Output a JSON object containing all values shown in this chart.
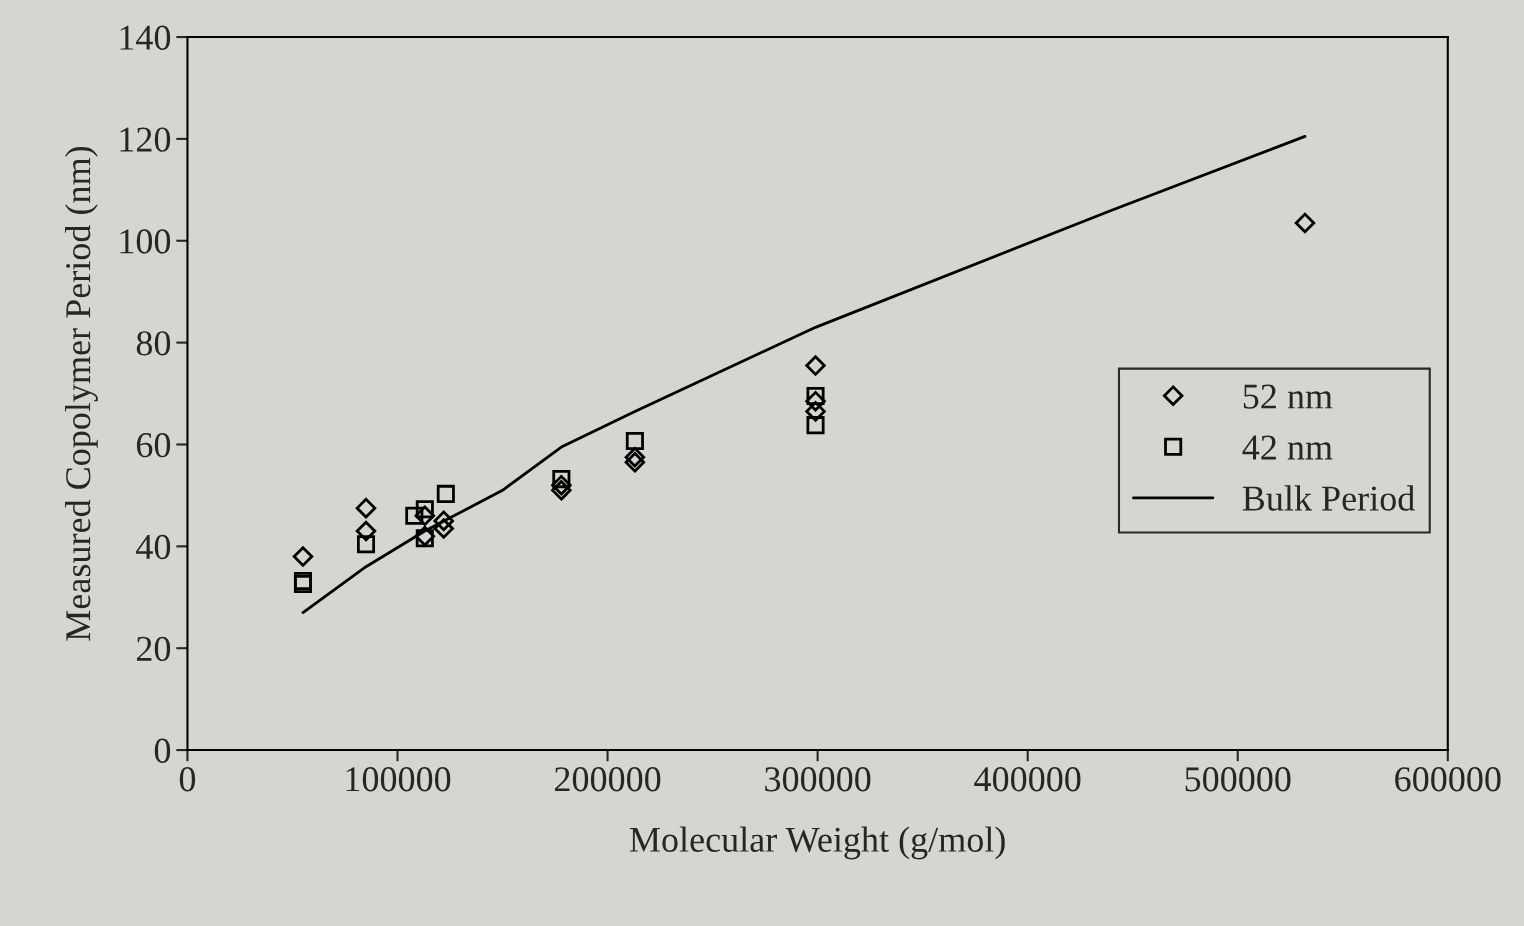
{
  "chart_data": {
    "type": "scatter",
    "xlabel": "Molecular Weight (g/mol)",
    "ylabel": "Measured Copolymer Period (nm)",
    "xlim": [
      0,
      600000
    ],
    "ylim": [
      0,
      140
    ],
    "xticks": [
      0,
      100000,
      200000,
      300000,
      400000,
      500000,
      600000
    ],
    "yticks": [
      0,
      20,
      40,
      60,
      80,
      100,
      120,
      140
    ],
    "grid": false,
    "legend": "right",
    "series": [
      {
        "name": "52 nm",
        "color": "#000000",
        "marker": "diamond",
        "x": [
          55000,
          85000,
          85000,
          113000,
          113000,
          122000,
          122000,
          178000,
          178000,
          213000,
          213000,
          299000,
          299000,
          299000,
          532000
        ],
        "values": [
          38,
          47.5,
          43,
          42,
          46,
          45,
          43.5,
          51,
          52,
          56.5,
          57.5,
          75.5,
          68.5,
          66.5,
          103.5
        ]
      },
      {
        "name": "42 nm",
        "color": "#000000",
        "marker": "square",
        "x": [
          55000,
          55000,
          85000,
          108000,
          113000,
          113000,
          123000,
          178000,
          213000,
          299000,
          299000
        ],
        "values": [
          33.2,
          32.6,
          40.4,
          46,
          41.6,
          47.3,
          50.3,
          53.2,
          60.7,
          63.8,
          69.5
        ]
      },
      {
        "name": "Bulk Period",
        "type": "line",
        "color": "#000000",
        "marker": "none",
        "line_style": "solid",
        "x": [
          55000,
          85000,
          113000,
          150000,
          178000,
          213000,
          299000,
          440000,
          532000
        ],
        "values": [
          27,
          36,
          43,
          51,
          59.5,
          66.5,
          83,
          106,
          120.5
        ]
      }
    ]
  }
}
